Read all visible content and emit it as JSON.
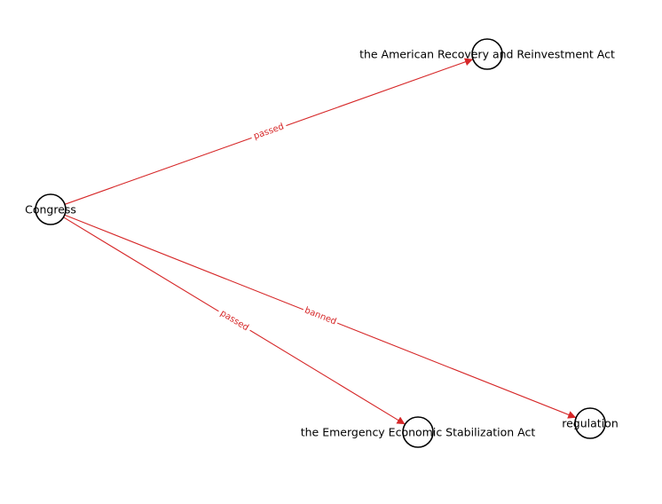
{
  "nodes": [
    {
      "id": "congress",
      "label": "Congress"
    },
    {
      "id": "arra",
      "label": "the American Recovery and Reinvestment Act"
    },
    {
      "id": "eesa",
      "label": "the Emergency Economic Stabilization Act"
    },
    {
      "id": "regulation",
      "label": "regulation"
    }
  ],
  "edges": [
    {
      "source": "congress",
      "target": "arra",
      "label": "passed"
    },
    {
      "source": "congress",
      "target": "eesa",
      "label": "passed"
    },
    {
      "source": "congress",
      "target": "regulation",
      "label": "banned"
    }
  ],
  "colors": {
    "edge": "#d62728",
    "node_stroke": "#000000",
    "node_fill": "#ffffff",
    "label": "#000000"
  }
}
